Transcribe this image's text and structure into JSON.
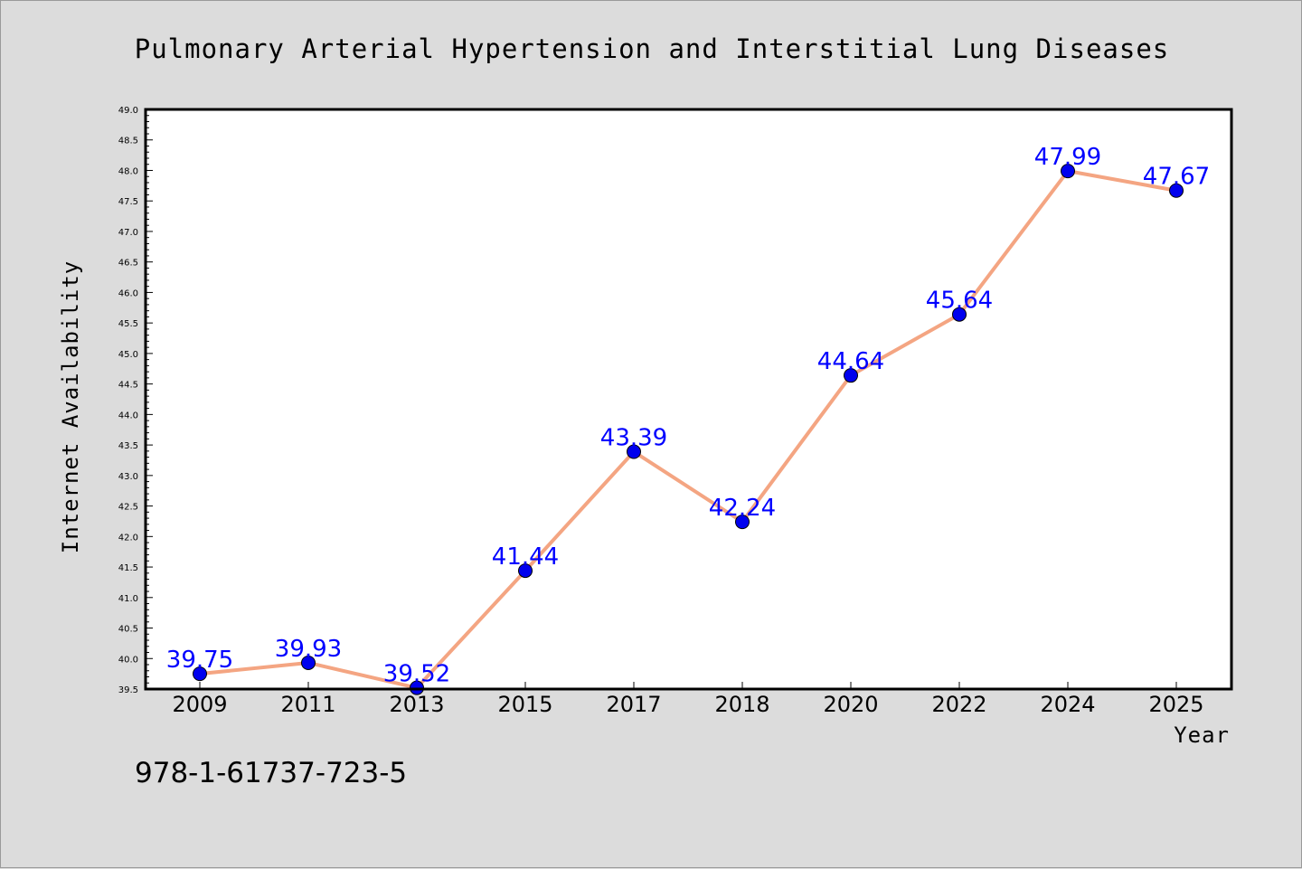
{
  "chart_data": {
    "type": "line",
    "title": "Pulmonary Arterial Hypertension and Interstitial Lung Diseases",
    "xlabel": "Year",
    "ylabel": "Internet Availability",
    "categories": [
      "2009",
      "2011",
      "2013",
      "2015",
      "2017",
      "2018",
      "2020",
      "2022",
      "2024",
      "2025"
    ],
    "series": [
      {
        "values": [
          39.75,
          39.93,
          39.52,
          41.44,
          43.39,
          42.24,
          44.64,
          45.64,
          47.99,
          47.67
        ],
        "labels": [
          "39.75",
          "39.93",
          "39.52",
          "41.44",
          "43.39",
          "42.24",
          "44.64",
          "45.64",
          "47.99",
          "47.67"
        ],
        "line_color": "#f4a582",
        "marker_color": "#0000ee",
        "label_color": "#0000ff"
      }
    ],
    "ylim": [
      39.5,
      49.0
    ],
    "yticks": [
      "39.5",
      "40.0",
      "40.5",
      "41.0",
      "41.5",
      "42.0",
      "42.5",
      "43.0",
      "43.5",
      "44.0",
      "44.5",
      "45.0",
      "45.5",
      "46.0",
      "46.5",
      "47.0",
      "47.5",
      "48.0",
      "48.5",
      "49.0"
    ],
    "grid": false,
    "legend": "none"
  },
  "footnote": "978-1-61737-723-5",
  "colors": {
    "background": "#dcdcdc",
    "plot_background": "#ffffff",
    "axis": "#000000"
  }
}
